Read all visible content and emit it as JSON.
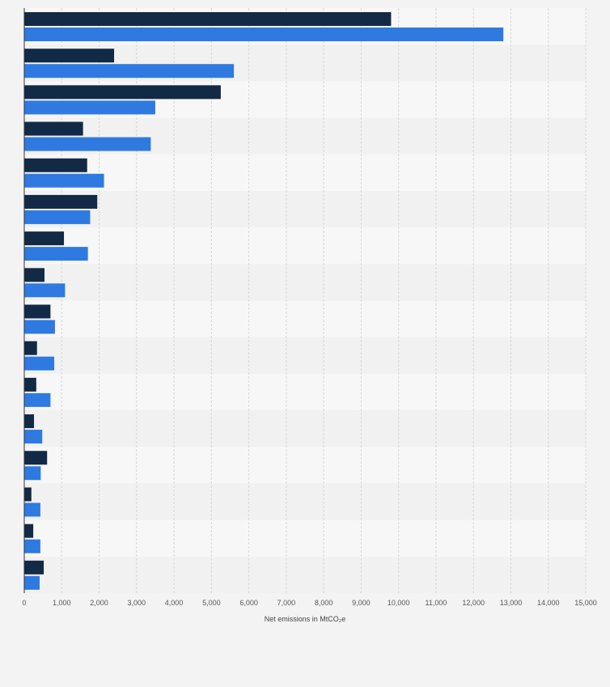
{
  "chart_data": {
    "type": "bar",
    "orientation": "horizontal",
    "xlabel": "Net emissions in MtCO₂e",
    "xlim": [
      0,
      15000
    ],
    "xticks": [
      0,
      1000,
      2000,
      3000,
      4000,
      5000,
      6000,
      7000,
      8000,
      9000,
      10000,
      11000,
      12000,
      13000,
      14000,
      15000
    ],
    "xtick_labels": [
      "0",
      "1,000",
      "2,000",
      "3,000",
      "4,000",
      "5,000",
      "6,000",
      "7,000",
      "8,000",
      "9,000",
      "10,000",
      "11,000",
      "12,000",
      "13,000",
      "14,000",
      "15,000"
    ],
    "grid": true,
    "categories_count": 16,
    "series": [
      {
        "color": "#132a46",
        "values": [
          9800,
          2400,
          5250,
          1570,
          1680,
          1950,
          1060,
          540,
          700,
          340,
          320,
          260,
          610,
          190,
          240,
          520
        ]
      },
      {
        "color": "#2f7ae0",
        "values": [
          12800,
          5600,
          3500,
          3380,
          2130,
          1760,
          1700,
          1090,
          820,
          800,
          700,
          480,
          440,
          430,
          430,
          410
        ]
      }
    ]
  }
}
